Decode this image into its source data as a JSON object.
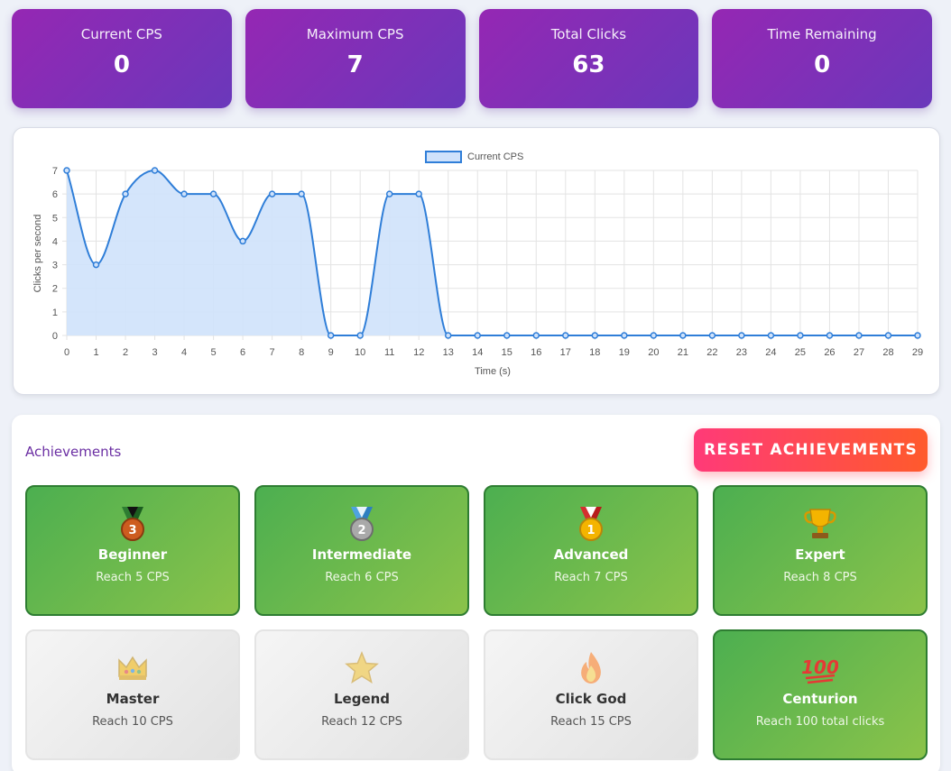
{
  "stats": [
    {
      "label": "Current CPS",
      "value": "0"
    },
    {
      "label": "Maximum CPS",
      "value": "7"
    },
    {
      "label": "Total Clicks",
      "value": "63"
    },
    {
      "label": "Time Remaining",
      "value": "0"
    }
  ],
  "chart_data": {
    "type": "line",
    "legend": "Current CPS",
    "xlabel": "Time (s)",
    "ylabel": "Clicks per second",
    "x": [
      0,
      1,
      2,
      3,
      4,
      5,
      6,
      7,
      8,
      9,
      10,
      11,
      12,
      13,
      14,
      15,
      16,
      17,
      18,
      19,
      20,
      21,
      22,
      23,
      24,
      25,
      26,
      27,
      28,
      29
    ],
    "values": [
      7,
      3,
      6,
      7,
      6,
      6,
      4,
      6,
      6,
      0,
      0,
      6,
      6,
      0,
      0,
      0,
      0,
      0,
      0,
      0,
      0,
      0,
      0,
      0,
      0,
      0,
      0,
      0,
      0,
      0
    ],
    "ylim": [
      0,
      7
    ],
    "yticks": [
      0,
      1,
      2,
      3,
      4,
      5,
      6,
      7
    ],
    "grid": true,
    "legend_position": "top",
    "colors": {
      "line": "#2f7ed8",
      "fill": "#cfe2fb"
    }
  },
  "achievements": {
    "title": "Achievements",
    "reset_label": "RESET ACHIEVEMENTS",
    "items": [
      {
        "icon": "bronze-medal-icon",
        "name": "Beginner",
        "desc": "Reach 5 CPS",
        "unlocked": true
      },
      {
        "icon": "silver-medal-icon",
        "name": "Intermediate",
        "desc": "Reach 6 CPS",
        "unlocked": true
      },
      {
        "icon": "gold-medal-icon",
        "name": "Advanced",
        "desc": "Reach 7 CPS",
        "unlocked": true
      },
      {
        "icon": "trophy-icon",
        "name": "Expert",
        "desc": "Reach 8 CPS",
        "unlocked": true
      },
      {
        "icon": "crown-icon",
        "name": "Master",
        "desc": "Reach 10 CPS",
        "unlocked": false
      },
      {
        "icon": "star-icon",
        "name": "Legend",
        "desc": "Reach 12 CPS",
        "unlocked": false
      },
      {
        "icon": "fire-icon",
        "name": "Click God",
        "desc": "Reach 15 CPS",
        "unlocked": false
      },
      {
        "icon": "hundred-icon",
        "name": "Centurion",
        "desc": "Reach 100 total clicks",
        "unlocked": true
      }
    ]
  }
}
